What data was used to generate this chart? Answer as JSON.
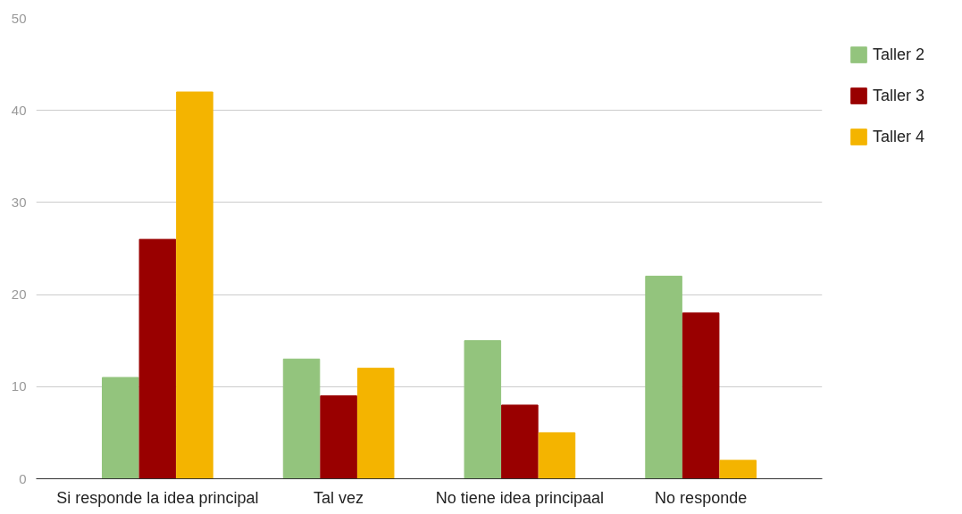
{
  "chart_data": {
    "type": "bar",
    "categories": [
      "Si responde la idea principal",
      "Tal vez",
      "No tiene idea principaal",
      "No responde"
    ],
    "series": [
      {
        "name": "Taller 2",
        "color": "#93c47d",
        "values": [
          11,
          13,
          15,
          22
        ]
      },
      {
        "name": "Taller 3",
        "color": "#990000",
        "values": [
          26,
          9,
          8,
          18
        ]
      },
      {
        "name": "Taller 4",
        "color": "#f4b400",
        "values": [
          42,
          12,
          5,
          2
        ]
      }
    ],
    "ylim": [
      0,
      50
    ],
    "yticks": [
      0,
      10,
      20,
      30,
      40,
      50
    ],
    "grid": "y",
    "legend": "top right"
  }
}
